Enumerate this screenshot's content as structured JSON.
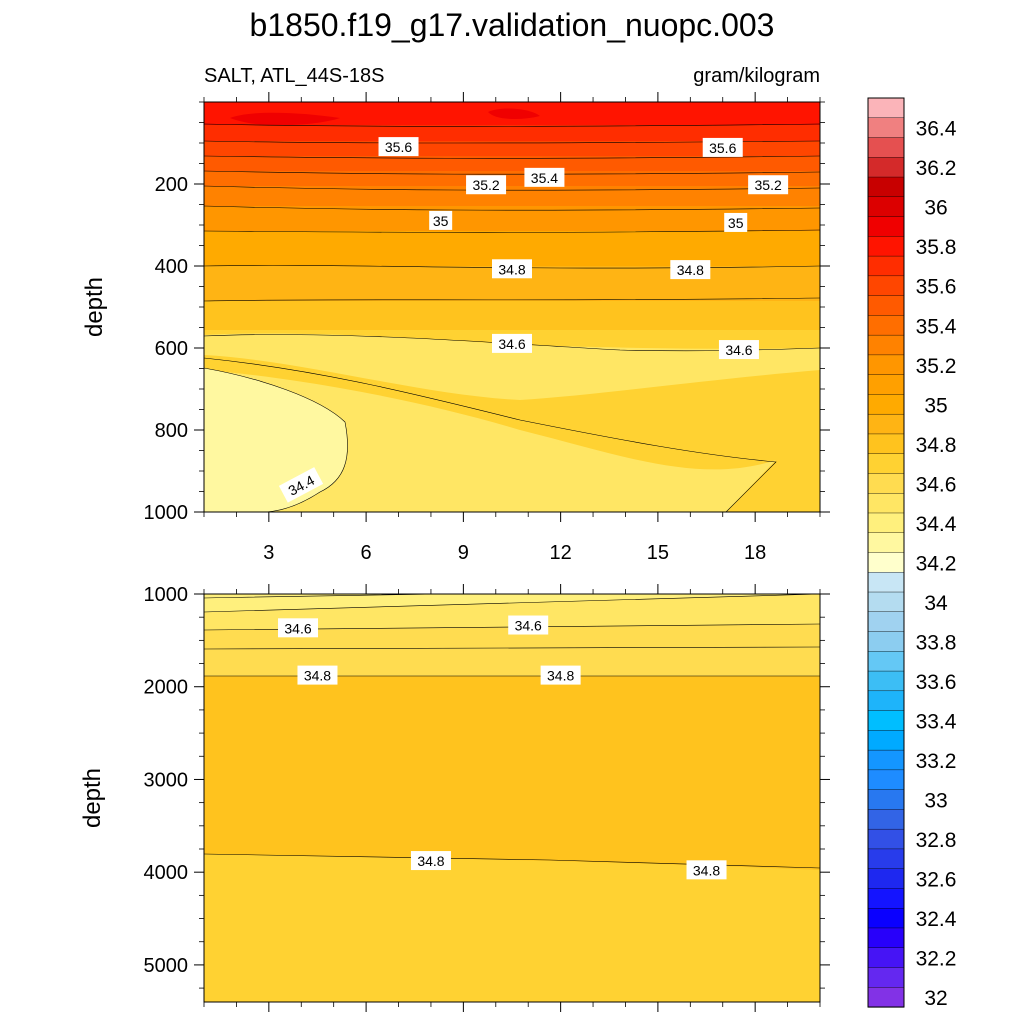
{
  "title": "b1850.f19_g17.validation_nuopc.003",
  "left_subtitle": "SALT, ATL_44S-18S",
  "right_subtitle": "gram/kilogram",
  "colors": {
    "contour_line": "#000000",
    "label_bg": "#ffffff"
  },
  "chart_data": [
    {
      "type": "contour",
      "panel": "upper",
      "ylabel": "depth",
      "xlabel": "",
      "ylim": [
        1000,
        0
      ],
      "y_reversed": true,
      "xlim": [
        1,
        20
      ],
      "x_ticks": [
        3,
        6,
        9,
        12,
        15,
        18
      ],
      "x_tick_labels": [
        "3",
        "6",
        "9",
        "12",
        "15",
        "18"
      ],
      "y_ticks": [
        200,
        400,
        600,
        800,
        1000
      ],
      "y_tick_labels": [
        "200",
        "400",
        "600",
        "800",
        "1000"
      ],
      "contour_labels": [
        {
          "text": "35.6",
          "x": 7.0,
          "y": 110
        },
        {
          "text": "35.6",
          "x": 17.0,
          "y": 112
        },
        {
          "text": "35.4",
          "x": 11.5,
          "y": 185
        },
        {
          "text": "35.2",
          "x": 9.7,
          "y": 203
        },
        {
          "text": "35.2",
          "x": 18.4,
          "y": 203
        },
        {
          "text": "35",
          "x": 8.3,
          "y": 290
        },
        {
          "text": "35",
          "x": 17.4,
          "y": 295
        },
        {
          "text": "34.8",
          "x": 10.5,
          "y": 408
        },
        {
          "text": "34.8",
          "x": 16.0,
          "y": 410
        },
        {
          "text": "34.6",
          "x": 10.5,
          "y": 590
        },
        {
          "text": "34.6",
          "x": 17.5,
          "y": 605
        },
        {
          "text": "34.4",
          "x": 4.0,
          "y": 935
        }
      ]
    },
    {
      "type": "contour",
      "panel": "lower",
      "ylabel": "depth",
      "xlabel": "",
      "ylim": [
        5400,
        1000
      ],
      "y_reversed": true,
      "xlim": [
        1,
        20
      ],
      "y_ticks": [
        1000,
        2000,
        3000,
        4000,
        5000
      ],
      "y_tick_labels": [
        "1000",
        "2000",
        "3000",
        "4000",
        "5000"
      ],
      "contour_labels": [
        {
          "text": "34.6",
          "x": 3.9,
          "y": 1370
        },
        {
          "text": "34.6",
          "x": 11.0,
          "y": 1340
        },
        {
          "text": "34.8",
          "x": 4.5,
          "y": 1880
        },
        {
          "text": "34.8",
          "x": 12.0,
          "y": 1880
        },
        {
          "text": "34.8",
          "x": 8.0,
          "y": 3880
        },
        {
          "text": "34.8",
          "x": 16.5,
          "y": 3980
        }
      ]
    }
  ],
  "colorbar": {
    "levels": [
      {
        "label": "",
        "color": "#fbb4b9"
      },
      {
        "label": "36.4",
        "color": "#f08080"
      },
      {
        "label": "",
        "color": "#e55050"
      },
      {
        "label": "36.2",
        "color": "#d42a2a"
      },
      {
        "label": "",
        "color": "#c80000"
      },
      {
        "label": "36",
        "color": "#dc0000"
      },
      {
        "label": "",
        "color": "#f00000"
      },
      {
        "label": "35.8",
        "color": "#ff1400"
      },
      {
        "label": "",
        "color": "#ff2d00"
      },
      {
        "label": "35.6",
        "color": "#ff4600"
      },
      {
        "label": "",
        "color": "#ff5a00"
      },
      {
        "label": "35.4",
        "color": "#ff6e00"
      },
      {
        "label": "",
        "color": "#ff8200"
      },
      {
        "label": "35.2",
        "color": "#ff9600"
      },
      {
        "label": "",
        "color": "#ffa000"
      },
      {
        "label": "35",
        "color": "#ffaa00"
      },
      {
        "label": "",
        "color": "#ffb414"
      },
      {
        "label": "34.8",
        "color": "#ffc31e"
      },
      {
        "label": "",
        "color": "#ffd232"
      },
      {
        "label": "34.6",
        "color": "#ffdc50"
      },
      {
        "label": "",
        "color": "#ffe664"
      },
      {
        "label": "34.4",
        "color": "#fff07d"
      },
      {
        "label": "",
        "color": "#fff8a0"
      },
      {
        "label": "34.2",
        "color": "#ffffcc"
      },
      {
        "label": "",
        "color": "#c8e6f5"
      },
      {
        "label": "34",
        "color": "#b4dcf0"
      },
      {
        "label": "",
        "color": "#a0d2f0"
      },
      {
        "label": "33.8",
        "color": "#8ccdf0"
      },
      {
        "label": "",
        "color": "#64c8f5"
      },
      {
        "label": "33.6",
        "color": "#3cbef5"
      },
      {
        "label": "",
        "color": "#1eb4fa"
      },
      {
        "label": "33.4",
        "color": "#00beff"
      },
      {
        "label": "",
        "color": "#00aaff"
      },
      {
        "label": "33.2",
        "color": "#1496ff"
      },
      {
        "label": "",
        "color": "#1e8cff"
      },
      {
        "label": "33",
        "color": "#2878f0"
      },
      {
        "label": "",
        "color": "#3264e6"
      },
      {
        "label": "32.8",
        "color": "#3250e6"
      },
      {
        "label": "",
        "color": "#283ceb"
      },
      {
        "label": "32.6",
        "color": "#1e28f0"
      },
      {
        "label": "",
        "color": "#1414ff"
      },
      {
        "label": "32.4",
        "color": "#0a00ff"
      },
      {
        "label": "",
        "color": "#2800fa"
      },
      {
        "label": "32.2",
        "color": "#4614f5"
      },
      {
        "label": "",
        "color": "#6428f0"
      },
      {
        "label": "32",
        "color": "#8232e6"
      }
    ]
  }
}
